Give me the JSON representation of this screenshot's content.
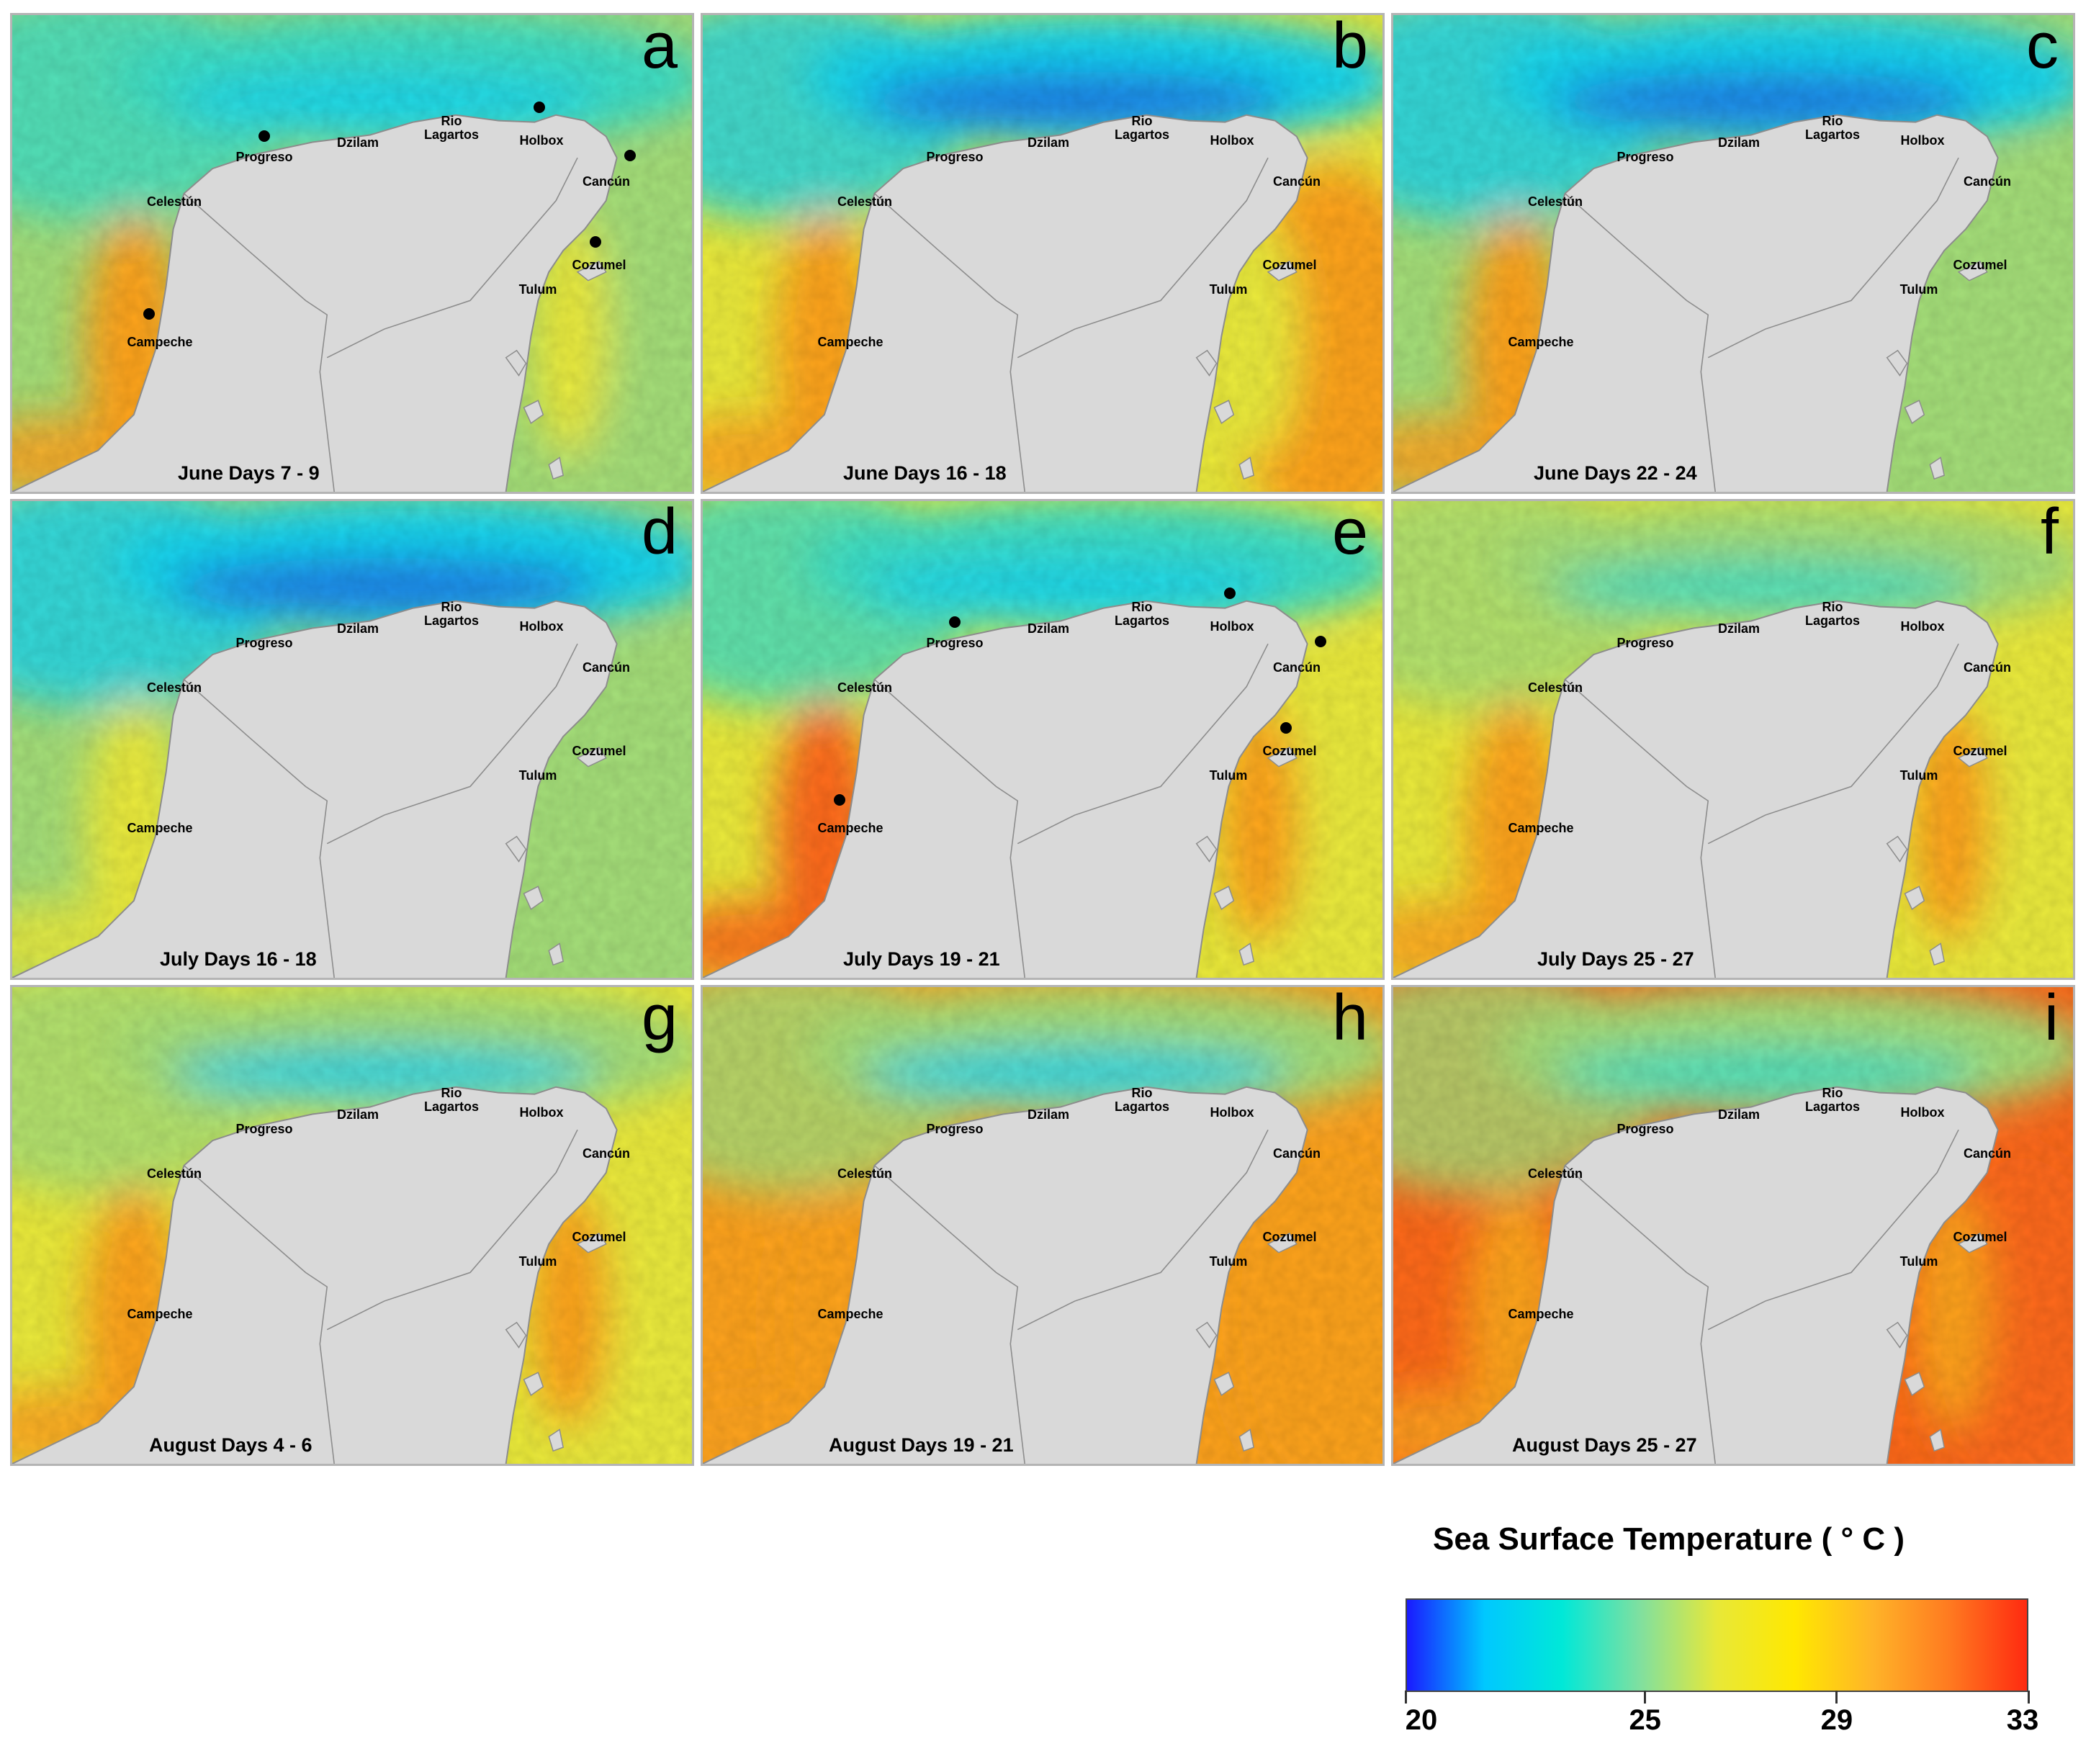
{
  "panels": [
    {
      "letter": "a",
      "caption": "June Days 7 - 9",
      "variant": "a",
      "markers": [
        "Progreso",
        "Holbox",
        "Cancún",
        "Cozumel",
        "Campeche"
      ]
    },
    {
      "letter": "b",
      "caption": "June Days 16 - 18",
      "variant": "b",
      "markers": []
    },
    {
      "letter": "c",
      "caption": "June Days 22 - 24",
      "variant": "c",
      "markers": []
    },
    {
      "letter": "d",
      "caption": "July Days 16 - 18",
      "variant": "d",
      "markers": []
    },
    {
      "letter": "e",
      "caption": "July Days 19 - 21",
      "variant": "e",
      "markers": [
        "Progreso",
        "Holbox",
        "Cancún",
        "Cozumel",
        "Campeche"
      ]
    },
    {
      "letter": "f",
      "caption": "July Days 25 - 27",
      "variant": "f",
      "markers": []
    },
    {
      "letter": "g",
      "caption": "August Days 4 - 6",
      "variant": "g",
      "markers": []
    },
    {
      "letter": "h",
      "caption": "August Days 19 - 21",
      "variant": "h",
      "markers": []
    },
    {
      "letter": "i",
      "caption": "August Days 25 - 27",
      "variant": "i",
      "markers": []
    }
  ],
  "towns": [
    "Progreso",
    "Dzilam",
    "Rio\nLagartos",
    "Holbox",
    "Cancún",
    "Celestún",
    "Cozumel",
    "Tulum",
    "Campeche"
  ],
  "legend": {
    "title": "Sea Surface Temperature ( ° C )",
    "ticks": [
      20,
      25,
      29,
      33
    ],
    "range": [
      20,
      33
    ],
    "colors": [
      "#1a1aff",
      "#00c8ff",
      "#00e8d8",
      "#7fe0a0",
      "#e8e838",
      "#ffe800",
      "#ffb428",
      "#ff7a20",
      "#ff2a10"
    ]
  },
  "palette": {
    "land": "#d9d9d9",
    "coast": "#8c8c8c",
    "deep_blue": "#1f6fe8",
    "cyan": "#19d6f0",
    "aqua": "#3ee0c8",
    "teal_green": "#6fd8b0",
    "light_green": "#a6e07a",
    "yellow": "#ecec3c",
    "orange": "#ffa41e",
    "red_orange": "#ff6a1a"
  }
}
